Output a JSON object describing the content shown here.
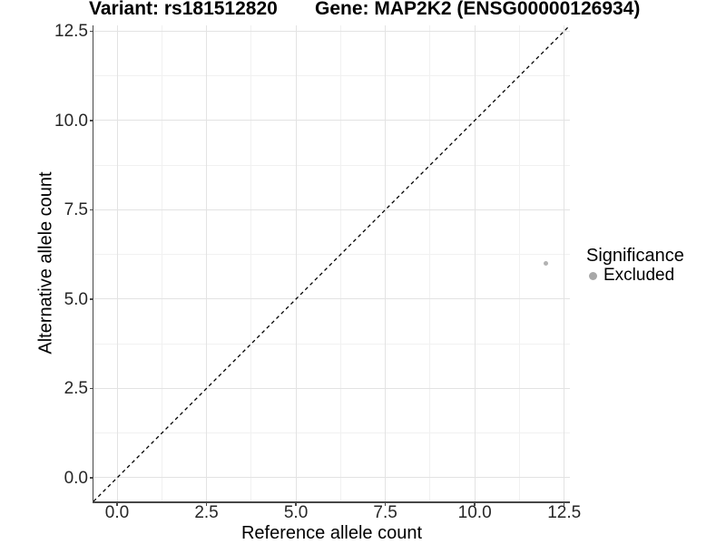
{
  "colors": {
    "background": "#ffffff",
    "axis": "#474747",
    "grid_major": "#e3e3e3",
    "grid_minor": "#f1f1f1",
    "reference_line": "#000000",
    "point": "#b3b3b3",
    "legend_key": "#a8a8a8"
  },
  "chart_data": {
    "type": "scatter",
    "title_left": "Variant: rs181512820",
    "title_right": "Gene: MAP2K2 (ENSG00000126934)",
    "xlabel": "Reference allele count",
    "ylabel": "Alternative allele count",
    "xlim": [
      -0.66,
      12.66
    ],
    "ylim": [
      -0.66,
      12.66
    ],
    "xticks": {
      "values": [
        0,
        2.5,
        5,
        7.5,
        10,
        12.5
      ],
      "labels": [
        "0.0",
        "2.5",
        "5.0",
        "7.5",
        "10.0",
        "12.5"
      ]
    },
    "yticks": {
      "values": [
        0,
        2.5,
        5,
        7.5,
        10,
        12.5
      ],
      "labels": [
        "0.0",
        "2.5",
        "5.0",
        "7.5",
        "10.0",
        "12.5"
      ]
    },
    "grid": {
      "major": true,
      "minor": true
    },
    "series": [
      {
        "name": "Excluded",
        "color": "#b3b3b3",
        "points": [
          {
            "x": 12,
            "y": 6
          }
        ]
      }
    ],
    "reference_line": {
      "type": "identity",
      "equation": "y = x",
      "style": "dashed",
      "color": "#000000"
    },
    "legend": {
      "title": "Significance",
      "position": "right",
      "items": [
        {
          "label": "Excluded",
          "color": "#b3b3b3"
        }
      ]
    }
  }
}
